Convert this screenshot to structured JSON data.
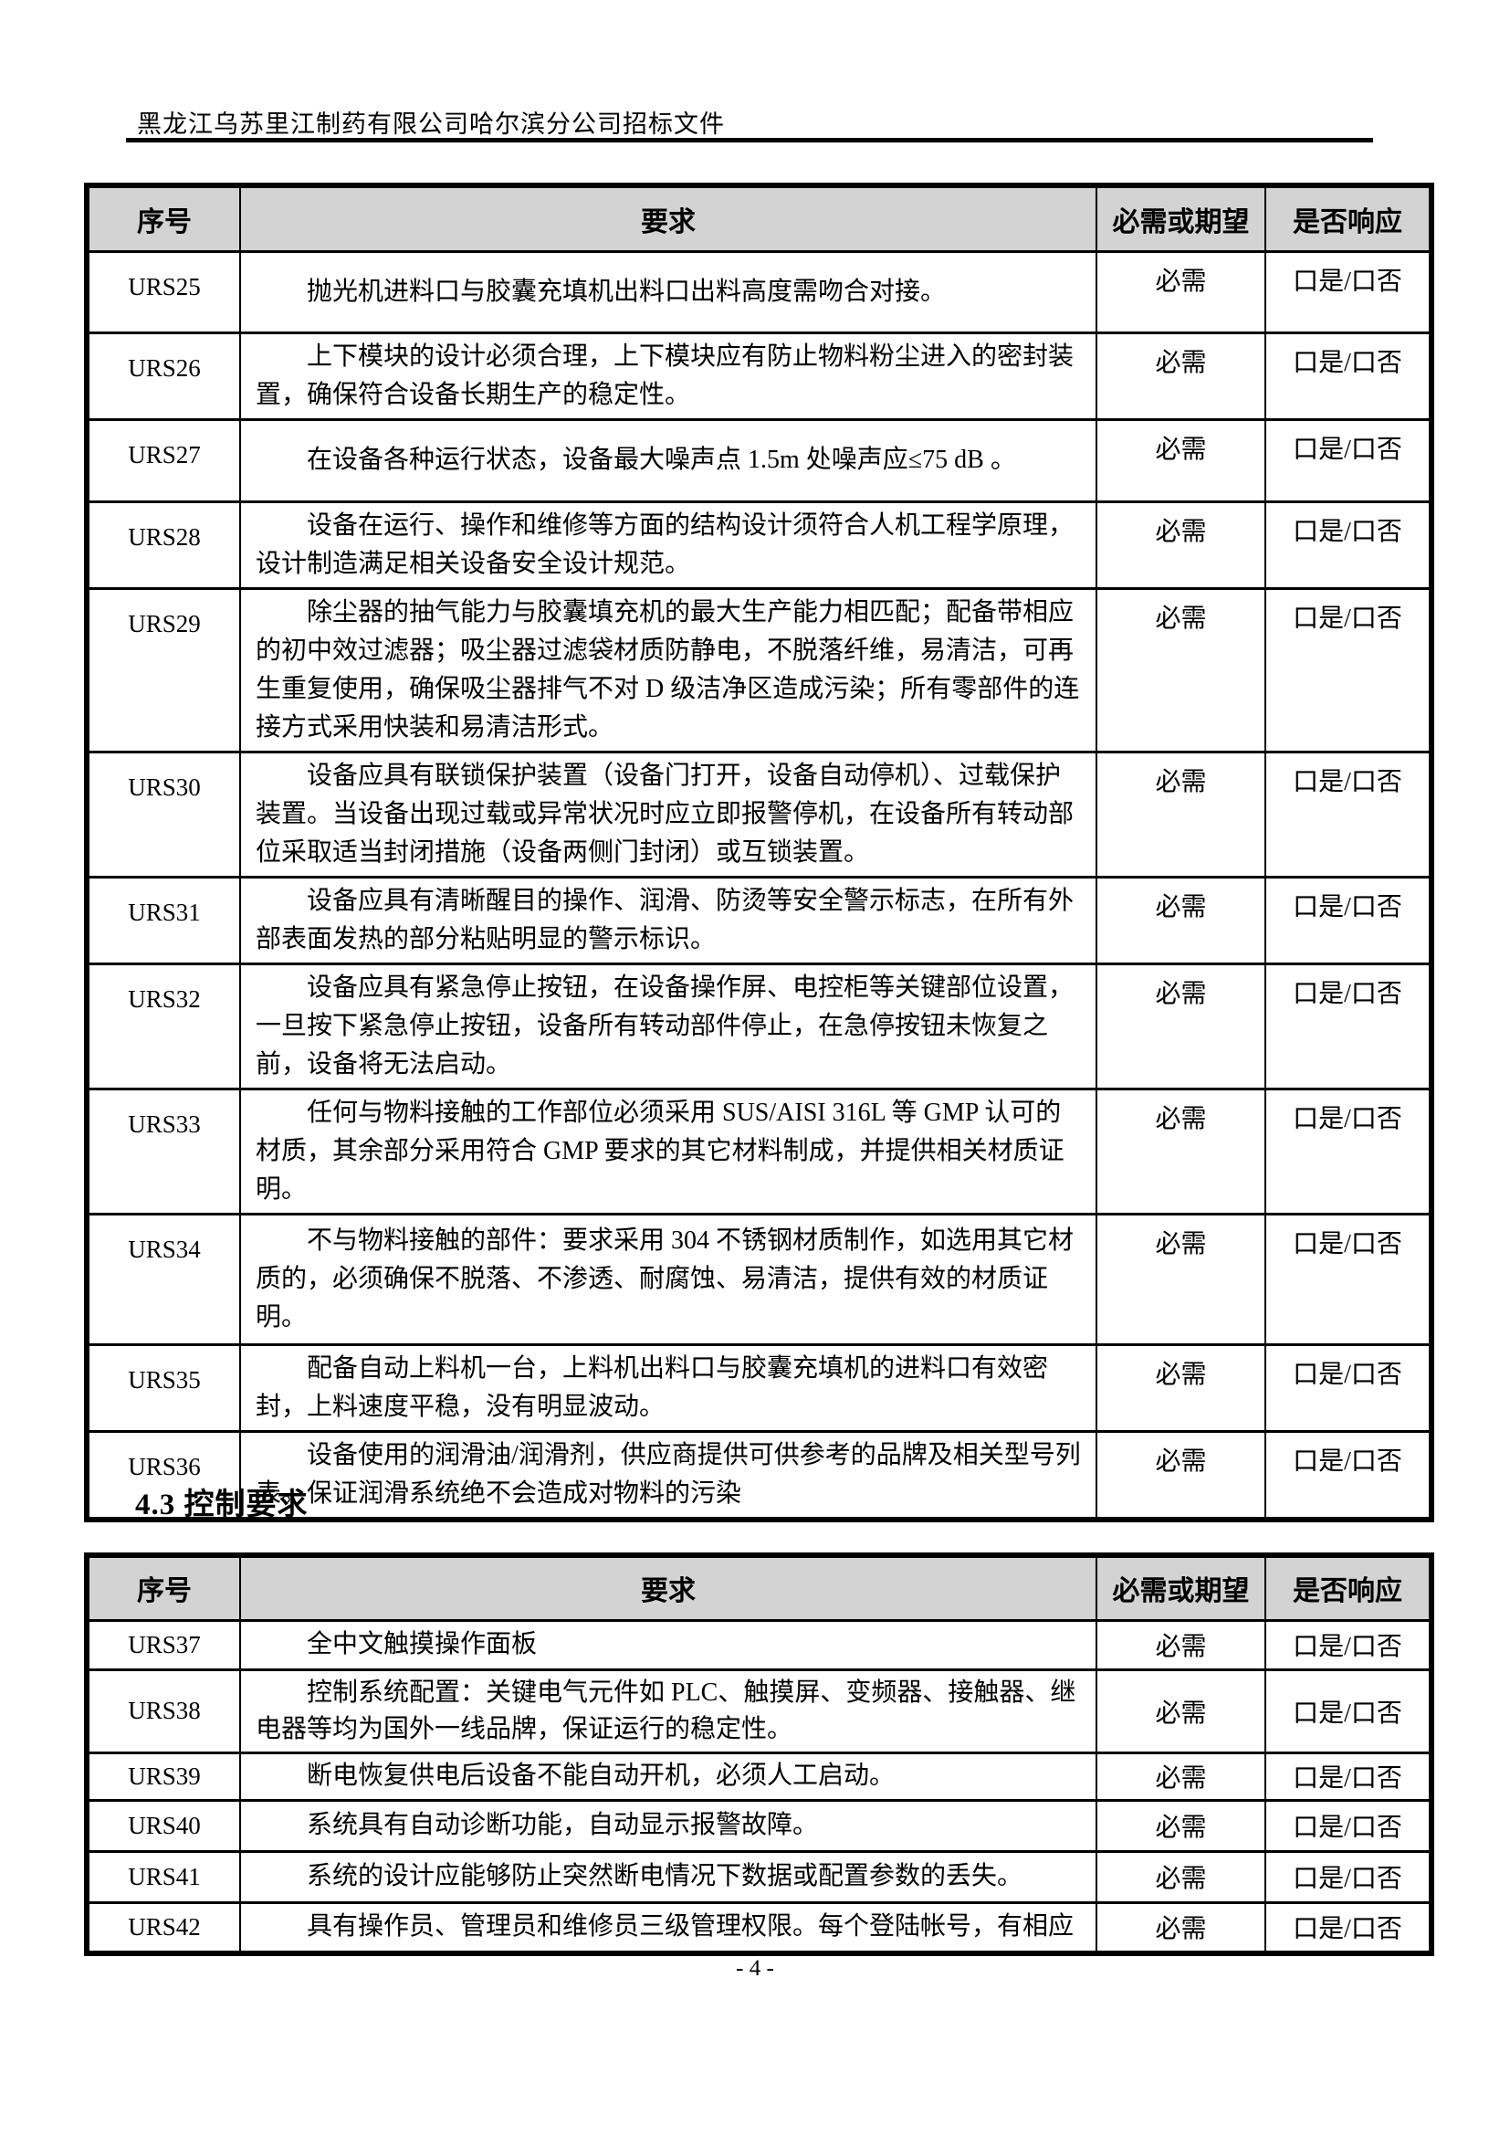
{
  "doc": {
    "header_title": "黑龙江乌苏里江制药有限公司哈尔滨分公司招标文件",
    "section_heading": "4.3 控制要求",
    "page_number": "- 4 -"
  },
  "requirements_table": {
    "headers": {
      "no": "序号",
      "req": "要求",
      "need": "必需或期望",
      "resp": "是否响应"
    },
    "rows": [
      {
        "id": "URS25",
        "req": "抛光机进料口与胶囊充填机出料口出料高度需吻合对接。",
        "need": "必需",
        "resp": "口是/口否"
      },
      {
        "id": "URS26",
        "req": "上下模块的设计必须合理，上下模块应有防止物料粉尘进入的密封装置，确保符合设备长期生产的稳定性。",
        "need": "必需",
        "resp": "口是/口否"
      },
      {
        "id": "URS27",
        "req": "在设备各种运行状态，设备最大噪声点 1.5m 处噪声应≤75 dB 。",
        "need": "必需",
        "resp": "口是/口否"
      },
      {
        "id": "URS28",
        "req": "设备在运行、操作和维修等方面的结构设计须符合人机工程学原理，设计制造满足相关设备安全设计规范。",
        "need": "必需",
        "resp": "口是/口否"
      },
      {
        "id": "URS29",
        "req": "除尘器的抽气能力与胶囊填充机的最大生产能力相匹配；配备带相应的初中效过滤器；吸尘器过滤袋材质防静电，不脱落纤维，易清洁，可再生重复使用，确保吸尘器排气不对 D 级洁净区造成污染；所有零部件的连接方式采用快装和易清洁形式。",
        "need": "必需",
        "resp": "口是/口否"
      },
      {
        "id": "URS30",
        "req": "设备应具有联锁保护装置（设备门打开，设备自动停机）、过载保护装置。当设备出现过载或异常状况时应立即报警停机，在设备所有转动部位采取适当封闭措施（设备两侧门封闭）或互锁装置。",
        "need": "必需",
        "resp": "口是/口否"
      },
      {
        "id": "URS31",
        "req": "设备应具有清晰醒目的操作、润滑、防烫等安全警示标志，在所有外部表面发热的部分粘贴明显的警示标识。",
        "need": "必需",
        "resp": "口是/口否"
      },
      {
        "id": "URS32",
        "req": "设备应具有紧急停止按钮，在设备操作屏、电控柜等关键部位设置，一旦按下紧急停止按钮，设备所有转动部件停止，在急停按钮未恢复之前，设备将无法启动。",
        "need": "必需",
        "resp": "口是/口否"
      },
      {
        "id": "URS33",
        "req": "任何与物料接触的工作部位必须采用 SUS/AISI 316L 等 GMP 认可的材质，其余部分采用符合 GMP 要求的其它材料制成，并提供相关材质证明。",
        "need": "必需",
        "resp": "口是/口否"
      },
      {
        "id": "URS34",
        "req": "不与物料接触的部件：要求采用 304 不锈钢材质制作，如选用其它材质的，必须确保不脱落、不渗透、耐腐蚀、易清洁，提供有效的材质证明。",
        "need": "必需",
        "resp": "口是/口否"
      },
      {
        "id": "URS35",
        "req": "配备自动上料机一台，上料机出料口与胶囊充填机的进料口有效密封，上料速度平稳，没有明显波动。",
        "need": "必需",
        "resp": "口是/口否"
      },
      {
        "id": "URS36",
        "req": "设备使用的润滑油/润滑剂，供应商提供可供参考的品牌及相关型号列表。保证润滑系统绝不会造成对物料的污染",
        "need": "必需",
        "resp": "口是/口否"
      }
    ]
  },
  "control_table": {
    "headers": {
      "no": "序号",
      "req": "要求",
      "need": "必需或期望",
      "resp": "是否响应"
    },
    "rows": [
      {
        "id": "URS37",
        "req": "全中文触摸操作面板",
        "need": "必需",
        "resp": "口是/口否"
      },
      {
        "id": "URS38",
        "req": "控制系统配置：关键电气元件如 PLC、触摸屏、变频器、接触器、继电器等均为国外一线品牌，保证运行的稳定性。",
        "need": "必需",
        "resp": "口是/口否"
      },
      {
        "id": "URS39",
        "req": "断电恢复供电后设备不能自动开机，必须人工启动。",
        "need": "必需",
        "resp": "口是/口否"
      },
      {
        "id": "URS40",
        "req": "系统具有自动诊断功能，自动显示报警故障。",
        "need": "必需",
        "resp": "口是/口否"
      },
      {
        "id": "URS41",
        "req": "系统的设计应能够防止突然断电情况下数据或配置参数的丢失。",
        "need": "必需",
        "resp": "口是/口否"
      },
      {
        "id": "URS42",
        "req": "具有操作员、管理员和维修员三级管理权限。每个登陆帐号，有相应",
        "need": "必需",
        "resp": "口是/口否"
      }
    ]
  }
}
